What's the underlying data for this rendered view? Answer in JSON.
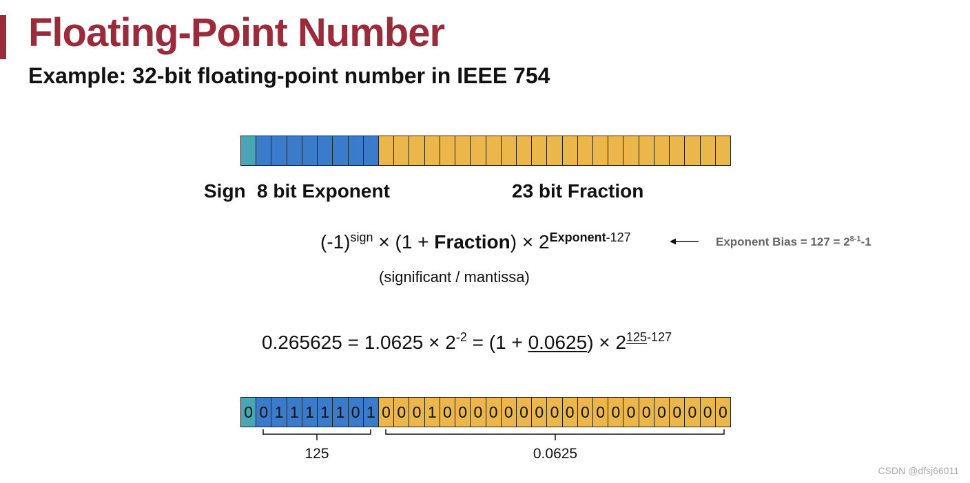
{
  "slide": {
    "title": "Floating-Point Number",
    "subtitle": "Example: 32-bit floating-point number in IEEE 754"
  },
  "colors": {
    "accent": "#9b2a3a",
    "sign": "#4aa6b5",
    "exponent": "#3a7bcb",
    "fraction": "#ebb74a"
  },
  "layout_fields": {
    "sign_label": "Sign",
    "exponent_label": "8 bit Exponent",
    "fraction_label": "23 bit Fraction"
  },
  "formula": {
    "prefix": "(-1)",
    "sign_sup": "sign",
    "mid1": " × (1 + ",
    "fraction_word": "Fraction",
    "mid2": ") × 2",
    "exp_sup_bold": "Exponent",
    "exp_sup_rest": "-127",
    "mantissa_note": "(significant / mantissa)"
  },
  "bias_note": {
    "text": "Exponent Bias = 127 = 2",
    "sup": "8-1",
    "suffix": "-1"
  },
  "example": {
    "lhs": "0.265625 = 1.0625 × 2",
    "pow": "-2",
    "mid": " = (1 + ",
    "fraction_value": "0.0625",
    "mid2": ") × 2",
    "exp_underlined": "125",
    "exp_rest": "-127"
  },
  "bits": {
    "sign": [
      "0"
    ],
    "exponent": [
      "0",
      "1",
      "1",
      "1",
      "1",
      "1",
      "0",
      "1"
    ],
    "fraction": [
      "0",
      "0",
      "0",
      "1",
      "0",
      "0",
      "0",
      "0",
      "0",
      "0",
      "0",
      "0",
      "0",
      "0",
      "0",
      "0",
      "0",
      "0",
      "0",
      "0",
      "0",
      "0",
      "0"
    ]
  },
  "brackets": {
    "exponent_value": "125",
    "fraction_value": "0.0625"
  },
  "watermark": "CSDN @dfsj66011"
}
